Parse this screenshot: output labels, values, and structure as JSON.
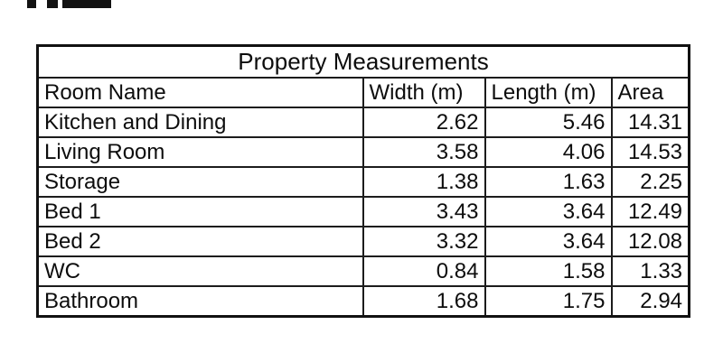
{
  "colors": {
    "background": "#ffffff",
    "outer_border": "#111111",
    "inner_border": "#1c1c1c",
    "text": "#0d0d0d",
    "artifact": "#121212"
  },
  "artifact": {
    "description": "clipped dark text fragment at top-left edge of screenshot"
  },
  "table": {
    "title": "Property Measurements",
    "columns": [
      "Room Name",
      "Width (m)",
      "Length (m)",
      "Area"
    ],
    "rows": [
      {
        "name": "Kitchen and Dining",
        "width": "2.62",
        "length": "5.46",
        "area": "14.31"
      },
      {
        "name": "Living Room",
        "width": "3.58",
        "length": "4.06",
        "area": "14.53"
      },
      {
        "name": "Storage",
        "width": "1.38",
        "length": "1.63",
        "area": "2.25"
      },
      {
        "name": "Bed 1",
        "width": "3.43",
        "length": "3.64",
        "area": "12.49"
      },
      {
        "name": "Bed 2",
        "width": "3.32",
        "length": "3.64",
        "area": "12.08"
      },
      {
        "name": "WC",
        "width": "0.84",
        "length": "1.58",
        "area": "1.33"
      },
      {
        "name": "Bathroom",
        "width": "1.68",
        "length": "1.75",
        "area": "2.94"
      }
    ]
  }
}
